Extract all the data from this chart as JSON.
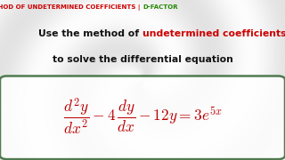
{
  "bg_color": "#f0eeec",
  "title_part1": "METHOD OF UNDETERMINED COEFFICIENTS",
  "title_sep": " | ",
  "title_part2": "D-FACTOR",
  "title_color_red": "#cc0000",
  "title_color_green": "#228800",
  "line2_black": "Use the method of ",
  "line2_red": "undetermined coefficients",
  "line3": "to solve the differential equation",
  "text_black": "#111111",
  "text_red": "#cc0000",
  "eq_color": "#bb0000",
  "box_edge_color": "#336633",
  "box_face_color": "#ffffff",
  "title_fontsize": 5.0,
  "body_fontsize": 7.8,
  "eq_fontsize": 12.5
}
